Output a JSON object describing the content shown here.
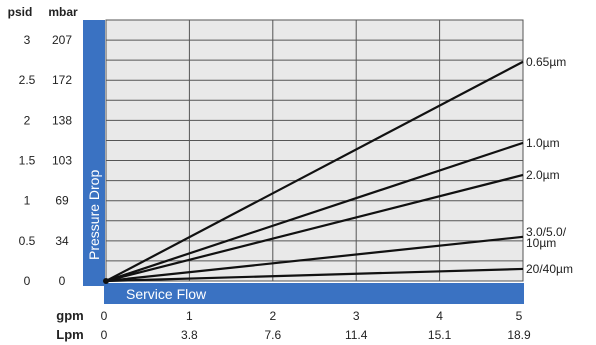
{
  "colors": {
    "accent": "#3a72c2",
    "grid": "#555555",
    "plot_bg": "#e9e9e9",
    "line": "#111111",
    "text": "#222222",
    "axis_text": "#ffffff"
  },
  "chart_data": {
    "type": "line",
    "ylabel": "Pressure Drop",
    "xlabel": "Service Flow",
    "y_units": {
      "psid": "psid",
      "mbar": "mbar"
    },
    "x_units": {
      "gpm": "gpm",
      "lpm": "Lpm"
    },
    "y_ticks": [
      {
        "psid": "0",
        "mbar": "0",
        "value": 0
      },
      {
        "psid": "0.5",
        "mbar": "34",
        "value": 0.5
      },
      {
        "psid": "1",
        "mbar": "69",
        "value": 1
      },
      {
        "psid": "1.5",
        "mbar": "103",
        "value": 1.5
      },
      {
        "psid": "2",
        "mbar": "138",
        "value": 2
      },
      {
        "psid": "2.5",
        "mbar": "172",
        "value": 2.5
      },
      {
        "psid": "3",
        "mbar": "207",
        "value": 3
      }
    ],
    "x_ticks": [
      {
        "gpm": "0",
        "lpm": "0",
        "value": 0
      },
      {
        "gpm": "1",
        "lpm": "3.8",
        "value": 1
      },
      {
        "gpm": "2",
        "lpm": "7.6",
        "value": 2
      },
      {
        "gpm": "3",
        "lpm": "11.4",
        "value": 3
      },
      {
        "gpm": "4",
        "lpm": "15.1",
        "value": 4
      },
      {
        "gpm": "5",
        "lpm": "18.9",
        "value": 5
      }
    ],
    "xlim": [
      0,
      5
    ],
    "ylim": [
      0,
      3.25
    ],
    "grid": true,
    "series": [
      {
        "name": "0.65µm",
        "x": [
          0,
          5
        ],
        "y": [
          0,
          2.73
        ]
      },
      {
        "name": "1.0µm",
        "x": [
          0,
          5
        ],
        "y": [
          0,
          1.72
        ]
      },
      {
        "name": "2.0µm",
        "x": [
          0,
          5
        ],
        "y": [
          0,
          1.32
        ]
      },
      {
        "name": "3.0/5.0/\n10µm",
        "x": [
          0,
          5
        ],
        "y": [
          0,
          0.55
        ]
      },
      {
        "name": "20/40µm",
        "x": [
          0,
          5
        ],
        "y": [
          0,
          0.15
        ]
      }
    ]
  }
}
